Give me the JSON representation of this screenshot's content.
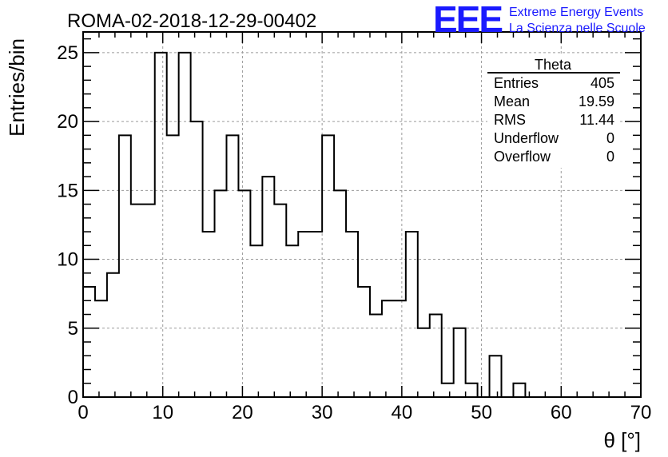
{
  "chart_data": {
    "type": "bar",
    "title": "ROMA-02-2018-12-29-00402",
    "xlabel": "θ [°]",
    "ylabel": "Entries/bin",
    "xlim": [
      0,
      70
    ],
    "ylim": [
      0,
      26.5
    ],
    "x_ticks": [
      0,
      10,
      20,
      30,
      40,
      50,
      60,
      70
    ],
    "y_ticks": [
      0,
      5,
      10,
      15,
      20,
      25
    ],
    "grid": true,
    "bin_width": 1.5,
    "bin_start": 0,
    "values": [
      8,
      7,
      9,
      19,
      14,
      14,
      25,
      19,
      25,
      20,
      12,
      15,
      19,
      15,
      11,
      16,
      14,
      11,
      12,
      12,
      19,
      15,
      12,
      8,
      6,
      7,
      7,
      12,
      5,
      6,
      1,
      5,
      1,
      0,
      3,
      0,
      1,
      0
    ],
    "stats_box": {
      "title": "Theta",
      "rows": [
        {
          "label": "Entries",
          "value": "405"
        },
        {
          "label": "Mean",
          "value": "19.59"
        },
        {
          "label": "RMS",
          "value": "11.44"
        },
        {
          "label": "Underflow",
          "value": "0"
        },
        {
          "label": "Overflow",
          "value": "0"
        }
      ]
    }
  },
  "logo": {
    "text": "EEE",
    "line1": "Extreme Energy Events",
    "line2": "La Scienza nelle Scuole",
    "color": "#1a1aff"
  }
}
